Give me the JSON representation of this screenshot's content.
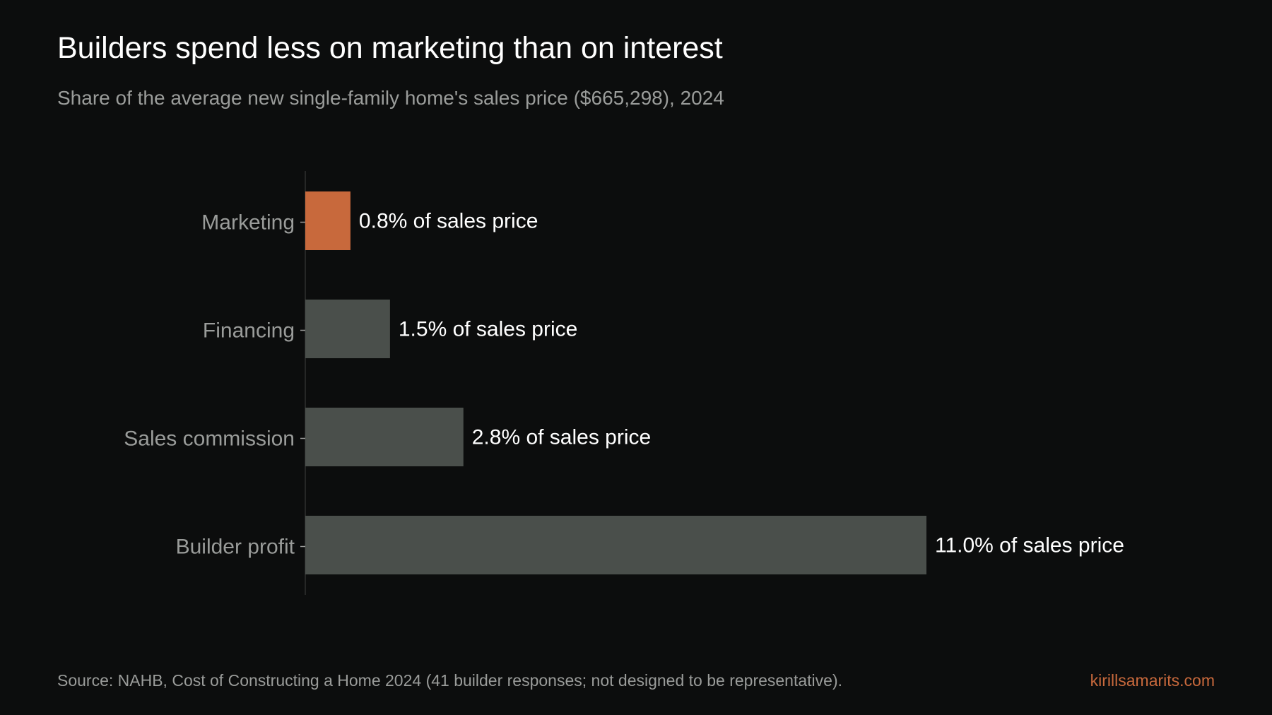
{
  "title": "Builders spend less on marketing than on interest",
  "subtitle": "Share of the average new single-family home's sales price ($665,298), 2024",
  "source": "Source: NAHB, Cost of Constructing a Home 2024 (41 builder responses; not designed to be representative).",
  "credit": "kirillsamarits.com",
  "colors": {
    "background": "#0c0d0d",
    "highlight": "#c8693c",
    "bar": "#4a4f4b",
    "category_label": "#9a9c9a",
    "value_label": "#ffffff",
    "axis": "#2e302f"
  },
  "chart_data": {
    "type": "bar",
    "orientation": "horizontal",
    "categories": [
      "Marketing",
      "Financing",
      "Sales commission",
      "Builder profit"
    ],
    "values": [
      0.8,
      1.5,
      2.8,
      11.0
    ],
    "value_labels": [
      "0.8% of sales price",
      "1.5% of sales price",
      "2.8% of sales price",
      "11.0% of sales price"
    ],
    "highlight": "Marketing",
    "xlim": [
      0,
      11.0
    ],
    "grid": false,
    "legend": "none"
  }
}
